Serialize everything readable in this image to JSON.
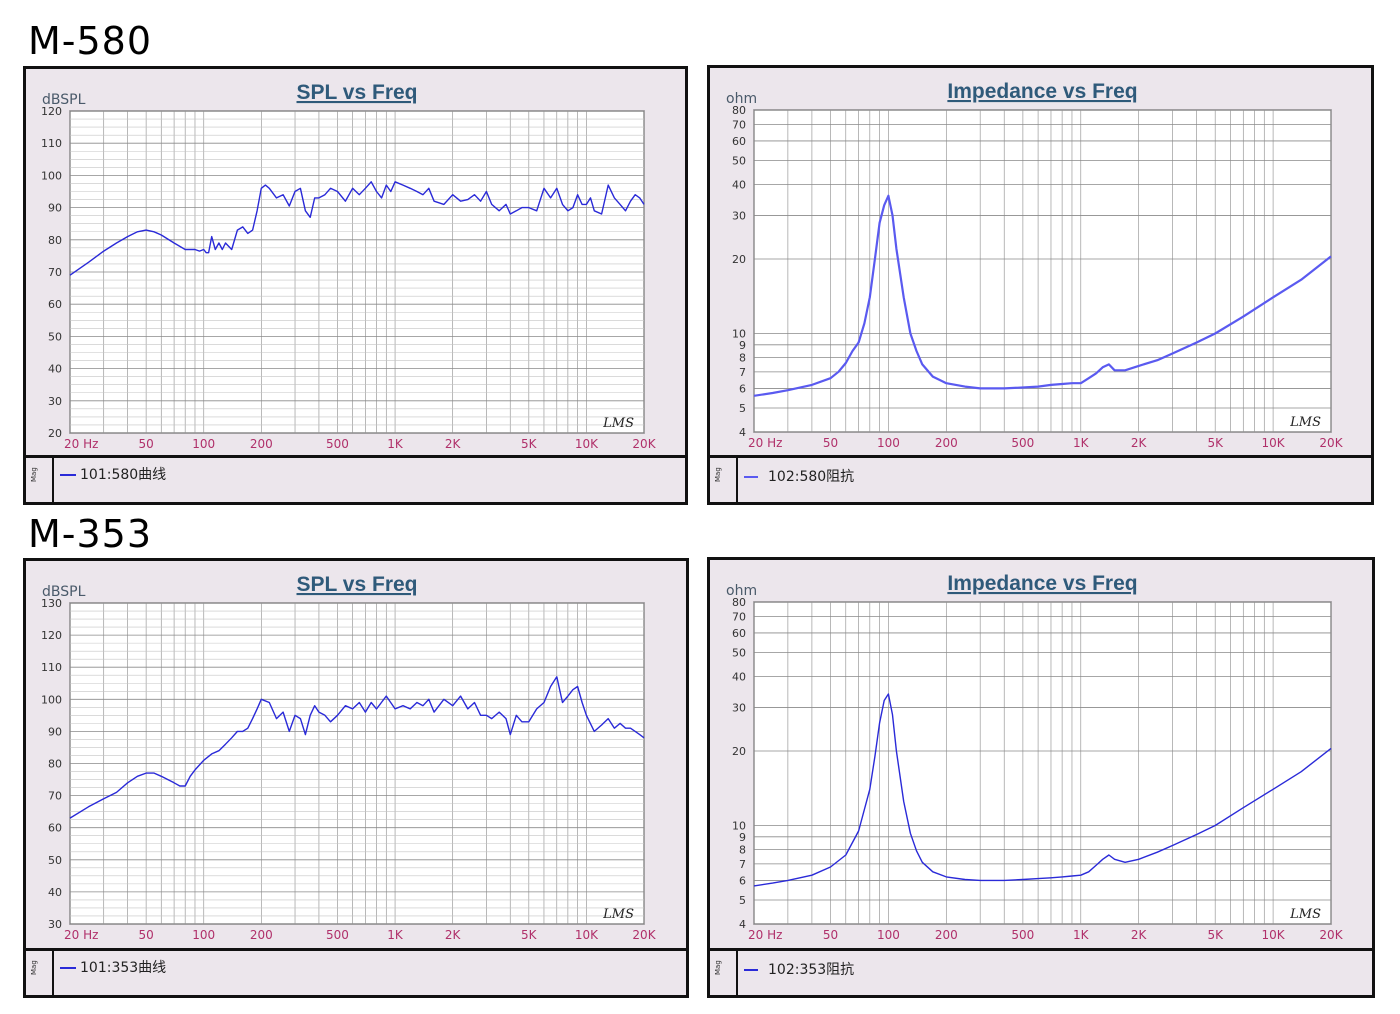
{
  "sections": [
    {
      "title": "M-580"
    },
    {
      "title": "M-353"
    }
  ],
  "colors": {
    "curve": "#2a2ad8",
    "impedance_curve": "#5a5af0",
    "grid": "#9a9a9a",
    "title": "#2f5a7a",
    "xtick": "#b0306a"
  },
  "chart_data": [
    {
      "type": "line",
      "title": "SPL vs Freq",
      "ylabel": "dBSPL",
      "xscale": "log",
      "xlim": [
        20,
        20000
      ],
      "ylim": [
        20,
        120
      ],
      "xticks": [
        20,
        50,
        100,
        200,
        500,
        1000,
        2000,
        5000,
        10000,
        20000
      ],
      "xtick_labels": [
        "20 Hz",
        "50",
        "100",
        "200",
        "500",
        "1K",
        "2K",
        "5K",
        "10K",
        "20K"
      ],
      "yticks": [
        20,
        30,
        40,
        50,
        60,
        70,
        80,
        90,
        100,
        110,
        120
      ],
      "watermark": "LMS",
      "side_label": "Mag",
      "series": [
        {
          "name": "101:580曲线",
          "x": [
            20,
            25,
            30,
            35,
            40,
            45,
            50,
            55,
            60,
            70,
            80,
            90,
            95,
            100,
            103,
            106,
            110,
            115,
            120,
            125,
            130,
            140,
            150,
            160,
            170,
            180,
            190,
            200,
            210,
            220,
            240,
            260,
            280,
            300,
            320,
            340,
            360,
            380,
            400,
            430,
            460,
            500,
            550,
            600,
            650,
            700,
            750,
            800,
            850,
            900,
            950,
            1000,
            1100,
            1200,
            1300,
            1400,
            1500,
            1600,
            1800,
            2000,
            2200,
            2400,
            2600,
            2800,
            3000,
            3200,
            3500,
            3800,
            4000,
            4300,
            4600,
            5000,
            5500,
            6000,
            6500,
            7000,
            7500,
            8000,
            8500,
            9000,
            9500,
            10000,
            10500,
            11000,
            12000,
            13000,
            14000,
            15000,
            16000,
            17000,
            18000,
            19000,
            20000
          ],
          "y": [
            69,
            73,
            76.5,
            79,
            81,
            82.5,
            83,
            82.5,
            81.5,
            79,
            77,
            77,
            76.5,
            77,
            76,
            76,
            81,
            77,
            79,
            77,
            79,
            77,
            83,
            84,
            82,
            83,
            89,
            96,
            97,
            96,
            93,
            94,
            90.5,
            95,
            96,
            89,
            87,
            93,
            93,
            94,
            96,
            95,
            92,
            96,
            94,
            96,
            98,
            95,
            93,
            97,
            95,
            98,
            97,
            96,
            95,
            94,
            96,
            92,
            91,
            94,
            92,
            92.5,
            94,
            92,
            95,
            91,
            89,
            91,
            88,
            89,
            90,
            90,
            89,
            96,
            93,
            96,
            91,
            89,
            90,
            94,
            91,
            91,
            93,
            89,
            88,
            97,
            93,
            91,
            89,
            92,
            94,
            93,
            91
          ]
        }
      ]
    },
    {
      "type": "line",
      "title": "Impedance vs Freq",
      "ylabel": "ohm",
      "xscale": "log",
      "yscale": "log",
      "xlim": [
        20,
        20000
      ],
      "ylim": [
        4,
        80
      ],
      "xticks": [
        20,
        50,
        100,
        200,
        500,
        1000,
        2000,
        5000,
        10000,
        20000
      ],
      "xtick_labels": [
        "20 Hz",
        "50",
        "100",
        "200",
        "500",
        "1K",
        "2K",
        "5K",
        "10K",
        "20K"
      ],
      "yticks": [
        4,
        5,
        6,
        7,
        8,
        9,
        10,
        20,
        30,
        40,
        50,
        60,
        70,
        80
      ],
      "watermark": "LMS",
      "side_label": "Mag",
      "series": [
        {
          "name": "102:580阻抗",
          "x": [
            20,
            25,
            30,
            40,
            50,
            55,
            60,
            65,
            70,
            75,
            80,
            85,
            90,
            95,
            100,
            105,
            110,
            120,
            130,
            140,
            150,
            170,
            200,
            250,
            300,
            400,
            500,
            600,
            700,
            800,
            900,
            1000,
            1100,
            1200,
            1300,
            1400,
            1500,
            1700,
            2000,
            2500,
            3000,
            4000,
            5000,
            7000,
            10000,
            14000,
            20000
          ],
          "y": [
            5.6,
            5.75,
            5.9,
            6.2,
            6.6,
            7.0,
            7.6,
            8.5,
            9.2,
            11,
            14,
            20,
            28,
            33,
            36,
            30,
            22,
            14,
            10,
            8.5,
            7.5,
            6.7,
            6.3,
            6.1,
            6.0,
            6.0,
            6.05,
            6.1,
            6.2,
            6.25,
            6.3,
            6.3,
            6.6,
            6.9,
            7.3,
            7.5,
            7.1,
            7.1,
            7.4,
            7.8,
            8.3,
            9.2,
            10,
            11.7,
            14.0,
            16.5,
            20.5
          ]
        }
      ]
    },
    {
      "type": "line",
      "title": "SPL vs Freq",
      "ylabel": "dBSPL",
      "xscale": "log",
      "xlim": [
        20,
        20000
      ],
      "ylim": [
        30,
        130
      ],
      "xticks": [
        20,
        50,
        100,
        200,
        500,
        1000,
        2000,
        5000,
        10000,
        20000
      ],
      "xtick_labels": [
        "20 Hz",
        "50",
        "100",
        "200",
        "500",
        "1K",
        "2K",
        "5K",
        "10K",
        "20K"
      ],
      "yticks": [
        30,
        40,
        50,
        60,
        70,
        80,
        90,
        100,
        110,
        120,
        130
      ],
      "watermark": "LMS",
      "side_label": "Mag",
      "series": [
        {
          "name": "101:353曲线",
          "x": [
            20,
            25,
            30,
            35,
            40,
            45,
            50,
            55,
            60,
            70,
            75,
            80,
            85,
            90,
            100,
            110,
            120,
            130,
            140,
            150,
            160,
            170,
            180,
            190,
            200,
            220,
            240,
            260,
            280,
            300,
            320,
            340,
            360,
            380,
            400,
            430,
            460,
            500,
            550,
            600,
            650,
            700,
            750,
            800,
            900,
            1000,
            1100,
            1200,
            1300,
            1400,
            1500,
            1600,
            1800,
            2000,
            2200,
            2400,
            2600,
            2800,
            3000,
            3200,
            3500,
            3800,
            4000,
            4300,
            4600,
            5000,
            5500,
            6000,
            6500,
            7000,
            7500,
            8000,
            8500,
            9000,
            9500,
            10000,
            11000,
            12000,
            13000,
            14000,
            15000,
            16000,
            17000,
            18000,
            19000,
            20000
          ],
          "y": [
            63,
            66.5,
            69,
            71,
            74,
            76,
            77,
            77,
            76,
            74,
            73,
            73,
            76,
            78,
            81,
            83,
            84,
            86,
            88,
            90,
            90,
            91,
            94,
            97,
            100,
            99,
            94,
            96,
            90,
            95,
            94,
            89,
            95,
            98,
            96,
            95,
            93,
            95,
            98,
            97,
            99,
            96,
            99,
            97,
            101,
            97,
            98,
            97,
            99,
            98,
            100,
            96,
            100,
            98,
            101,
            97,
            99,
            95,
            95,
            94,
            96,
            94,
            89,
            95,
            93,
            93,
            97,
            99,
            104,
            107,
            99,
            101,
            103,
            104,
            99,
            95,
            90,
            92,
            94,
            91,
            92.5,
            91,
            91,
            90,
            89,
            88
          ]
        }
      ]
    },
    {
      "type": "line",
      "title": "Impedance vs Freq",
      "ylabel": "ohm",
      "xscale": "log",
      "yscale": "log",
      "xlim": [
        20,
        20000
      ],
      "ylim": [
        4,
        80
      ],
      "xticks": [
        20,
        50,
        100,
        200,
        500,
        1000,
        2000,
        5000,
        10000,
        20000
      ],
      "xtick_labels": [
        "20 Hz",
        "50",
        "100",
        "200",
        "500",
        "1K",
        "2K",
        "5K",
        "10K",
        "20K"
      ],
      "yticks": [
        4,
        5,
        6,
        7,
        8,
        9,
        10,
        20,
        30,
        40,
        50,
        60,
        70,
        80
      ],
      "watermark": "LMS",
      "side_label": "Mag",
      "series": [
        {
          "name": "102:353阻抗",
          "x": [
            20,
            25,
            30,
            40,
            50,
            60,
            70,
            80,
            85,
            90,
            95,
            100,
            105,
            110,
            120,
            130,
            140,
            150,
            170,
            200,
            250,
            300,
            400,
            500,
            600,
            700,
            800,
            900,
            1000,
            1100,
            1200,
            1300,
            1400,
            1500,
            1700,
            2000,
            2500,
            3000,
            4000,
            5000,
            7000,
            10000,
            14000,
            20000
          ],
          "y": [
            5.7,
            5.85,
            6.0,
            6.3,
            6.8,
            7.6,
            9.5,
            14,
            19,
            26,
            32,
            34,
            28,
            20,
            12.5,
            9.3,
            7.9,
            7.1,
            6.5,
            6.2,
            6.05,
            6.0,
            6.0,
            6.05,
            6.1,
            6.15,
            6.2,
            6.25,
            6.3,
            6.5,
            6.9,
            7.3,
            7.6,
            7.3,
            7.1,
            7.3,
            7.8,
            8.3,
            9.2,
            10,
            11.8,
            14.0,
            16.5,
            20.5
          ]
        }
      ]
    }
  ]
}
